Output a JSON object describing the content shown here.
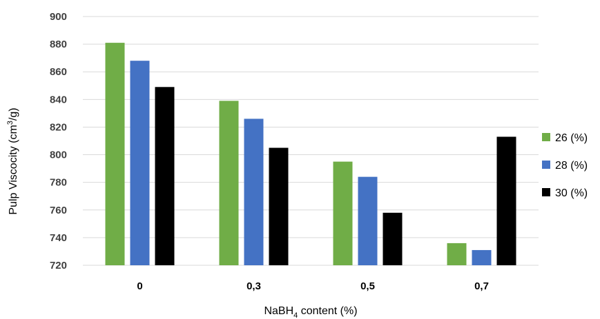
{
  "chart_data": {
    "type": "bar",
    "categories": [
      "0",
      "0,3",
      "0,5",
      "0,7"
    ],
    "series": [
      {
        "name": "26 (%)",
        "color": "#70ad47",
        "values": [
          881,
          839,
          795,
          736
        ]
      },
      {
        "name": "28 (%)",
        "color": "#4472c4",
        "values": [
          868,
          826,
          784,
          731
        ]
      },
      {
        "name": "30 (%)",
        "color": "#000000",
        "values": [
          849,
          805,
          758,
          813
        ]
      }
    ],
    "ylim": [
      720,
      900
    ],
    "yticks": [
      "720",
      "740",
      "760",
      "780",
      "800",
      "820",
      "840",
      "860",
      "880",
      "900"
    ],
    "ylabel": {
      "main": "Pulp Viscocity (cm",
      "sup": "3",
      "tail": "/g)"
    },
    "xlabel": {
      "main": "NaBH",
      "sub": "4",
      "tail": " content (%)"
    },
    "grid": true,
    "legend_position": "right"
  }
}
